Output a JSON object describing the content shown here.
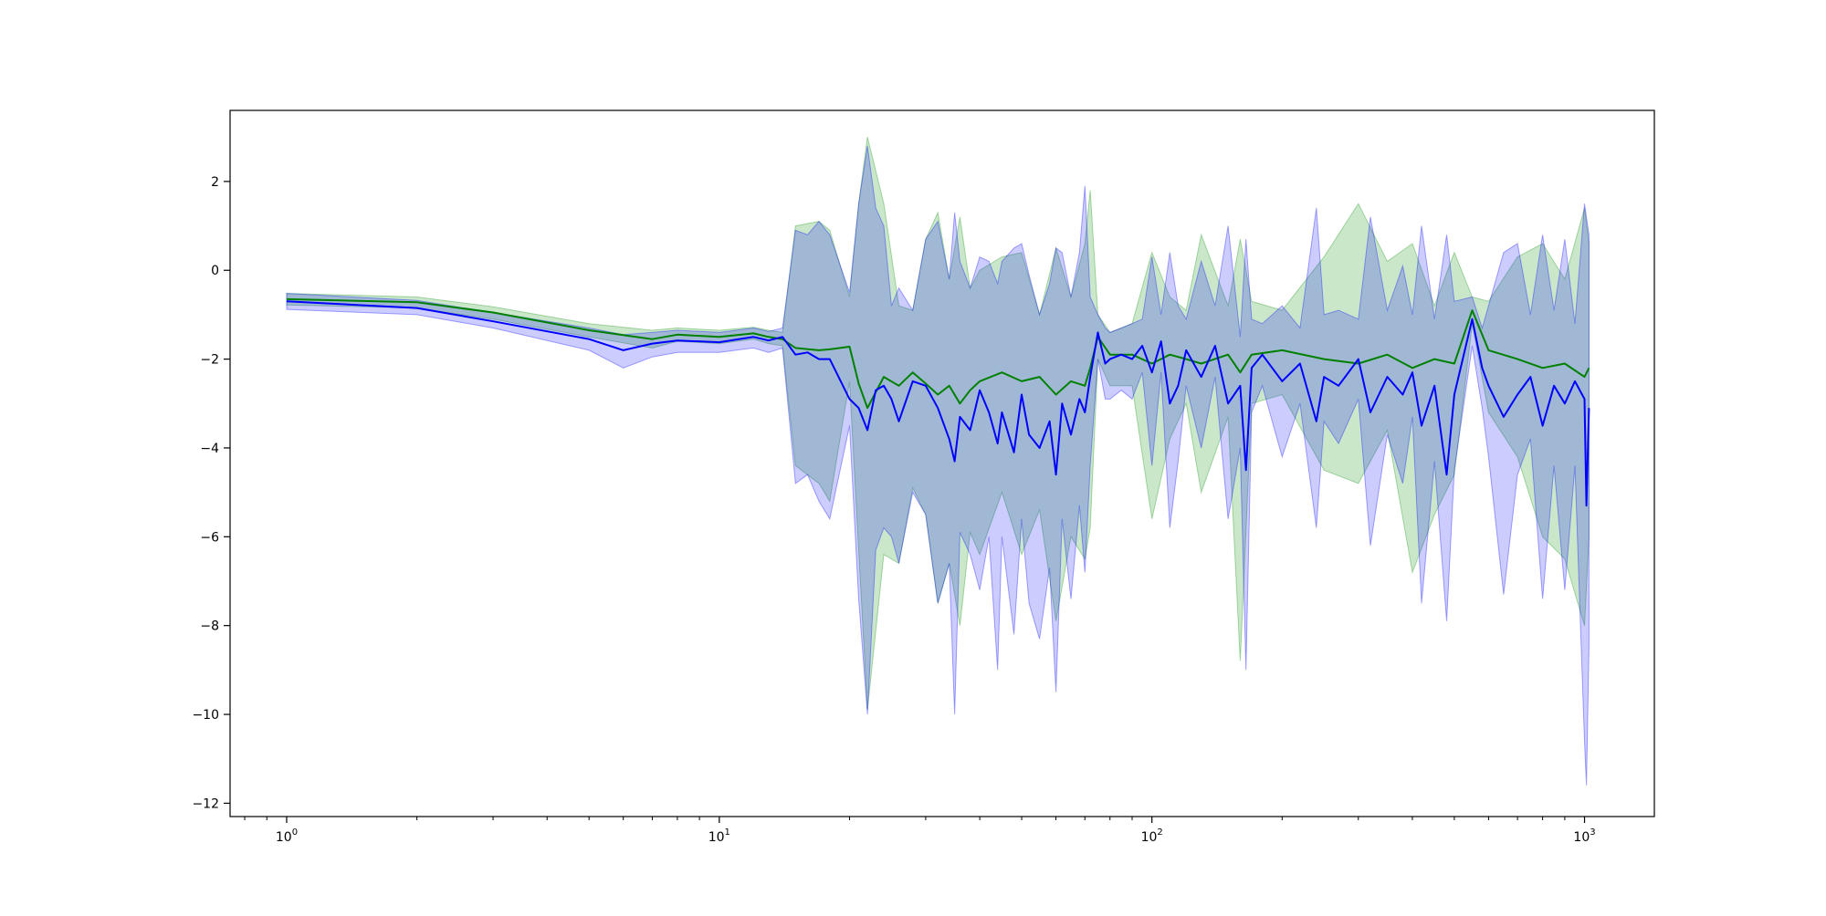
{
  "chart_data": {
    "type": "line",
    "title": "",
    "xlabel": "",
    "ylabel": "",
    "x_scale": "log",
    "xlim": [
      0.74,
      1450
    ],
    "ylim": [
      -12.3,
      3.6
    ],
    "grid": false,
    "legend": "none",
    "x_ticks": [
      1,
      10,
      100,
      1000
    ],
    "x_tick_labels": [
      {
        "base": "10",
        "exp": "0"
      },
      {
        "base": "10",
        "exp": "1"
      },
      {
        "base": "10",
        "exp": "2"
      },
      {
        "base": "10",
        "exp": "3"
      }
    ],
    "y_ticks": [
      2,
      0,
      -2,
      -4,
      -6,
      -8,
      -10,
      -12
    ],
    "y_tick_labels": [
      "2",
      "0",
      "−2",
      "−4",
      "−6",
      "−8",
      "−10",
      "−12"
    ],
    "series": [
      {
        "color": "#008000",
        "band_color": "#2ca02c",
        "band_opacity": 0.25,
        "x": [
          1,
          2,
          3,
          5,
          7,
          8,
          10,
          12,
          13,
          14,
          15,
          17,
          18,
          20,
          21,
          22,
          24,
          26,
          28,
          30,
          32,
          34,
          36,
          38,
          40,
          45,
          50,
          55,
          60,
          65,
          70,
          72,
          75,
          80,
          90,
          100,
          110,
          120,
          130,
          150,
          160,
          170,
          200,
          250,
          300,
          350,
          400,
          450,
          500,
          550,
          600,
          700,
          800,
          900,
          1000,
          1024
        ],
        "y": [
          -0.65,
          -0.72,
          -0.95,
          -1.35,
          -1.55,
          -1.45,
          -1.5,
          -1.42,
          -1.5,
          -1.55,
          -1.75,
          -1.8,
          -1.78,
          -1.72,
          -2.55,
          -3.1,
          -2.4,
          -2.6,
          -2.3,
          -2.55,
          -2.8,
          -2.6,
          -3.0,
          -2.7,
          -2.5,
          -2.3,
          -2.5,
          -2.4,
          -2.8,
          -2.5,
          -2.6,
          -2.2,
          -1.5,
          -1.9,
          -1.9,
          -2.1,
          -1.9,
          -2.0,
          -2.1,
          -1.9,
          -2.3,
          -1.9,
          -1.8,
          -2.0,
          -2.1,
          -1.9,
          -2.2,
          -2.0,
          -2.1,
          -0.9,
          -1.8,
          -2.0,
          -2.2,
          -2.1,
          -2.4,
          -2.2
        ],
        "lower": [
          -0.78,
          -0.85,
          -1.1,
          -1.5,
          -1.75,
          -1.6,
          -1.65,
          -1.55,
          -1.65,
          -1.7,
          -4.4,
          -4.8,
          -5.2,
          -2.5,
          -6.3,
          -9.9,
          -6.4,
          -6.6,
          -4.9,
          -5.5,
          -7.5,
          -6.6,
          -8.0,
          -5.9,
          -6.4,
          -5.0,
          -6.4,
          -5.4,
          -7.9,
          -6.0,
          -6.5,
          -5.8,
          -2.0,
          -2.6,
          -2.6,
          -5.6,
          -3.8,
          -3.0,
          -5.0,
          -3.3,
          -8.8,
          -3.0,
          -2.8,
          -4.5,
          -4.8,
          -3.6,
          -6.8,
          -5.5,
          -4.6,
          -1.2,
          -3.2,
          -4.2,
          -6.0,
          -6.5,
          -8.0,
          -6.0
        ],
        "upper": [
          -0.52,
          -0.6,
          -0.82,
          -1.2,
          -1.35,
          -1.3,
          -1.35,
          -1.28,
          -1.35,
          -1.4,
          1.0,
          1.1,
          0.9,
          -0.6,
          1.5,
          3.0,
          1.5,
          -0.8,
          -0.9,
          0.7,
          1.3,
          -0.2,
          1.2,
          -0.4,
          0.0,
          0.3,
          0.4,
          -1.0,
          0.5,
          -0.6,
          0.6,
          1.8,
          -1.0,
          -1.4,
          -1.2,
          0.4,
          -0.6,
          -0.9,
          0.8,
          -0.8,
          0.7,
          -0.7,
          -0.9,
          0.3,
          1.5,
          0.2,
          0.6,
          -0.8,
          0.4,
          -0.6,
          -0.7,
          0.3,
          0.6,
          -0.2,
          1.4,
          0.6
        ]
      },
      {
        "color": "#0000ff",
        "band_color": "#0000ff",
        "band_opacity": 0.2,
        "x": [
          1,
          2,
          3,
          5,
          6,
          7,
          8,
          10,
          12,
          13,
          14,
          15,
          16,
          17,
          18,
          20,
          21,
          22,
          23,
          24,
          25,
          26,
          28,
          30,
          32,
          34,
          35,
          36,
          38,
          40,
          42,
          44,
          45,
          48,
          50,
          52,
          55,
          58,
          60,
          62,
          65,
          68,
          70,
          72,
          75,
          78,
          80,
          85,
          90,
          95,
          100,
          105,
          110,
          115,
          120,
          130,
          140,
          150,
          160,
          165,
          170,
          180,
          200,
          220,
          240,
          250,
          270,
          300,
          320,
          350,
          380,
          400,
          420,
          450,
          480,
          500,
          550,
          580,
          600,
          650,
          700,
          750,
          800,
          850,
          900,
          950,
          1000,
          1010,
          1024
        ],
        "y": [
          -0.7,
          -0.85,
          -1.15,
          -1.55,
          -1.8,
          -1.65,
          -1.58,
          -1.62,
          -1.5,
          -1.58,
          -1.5,
          -1.9,
          -1.85,
          -2.0,
          -2.0,
          -2.9,
          -3.1,
          -3.6,
          -2.7,
          -2.6,
          -2.9,
          -3.4,
          -2.5,
          -2.6,
          -3.1,
          -3.8,
          -4.3,
          -3.3,
          -3.6,
          -2.7,
          -3.2,
          -3.9,
          -3.2,
          -4.1,
          -2.8,
          -3.7,
          -4.0,
          -3.4,
          -4.6,
          -3.0,
          -3.7,
          -2.9,
          -3.2,
          -2.4,
          -1.4,
          -2.1,
          -2.0,
          -1.9,
          -2.0,
          -1.7,
          -2.3,
          -1.6,
          -3.0,
          -2.6,
          -1.8,
          -2.4,
          -1.7,
          -3.0,
          -2.6,
          -4.5,
          -2.2,
          -1.9,
          -2.5,
          -2.1,
          -3.4,
          -2.4,
          -2.6,
          -2.0,
          -3.2,
          -2.4,
          -2.8,
          -2.3,
          -3.5,
          -2.6,
          -4.6,
          -2.8,
          -1.1,
          -2.2,
          -2.6,
          -3.3,
          -2.8,
          -2.4,
          -3.5,
          -2.6,
          -3.0,
          -2.5,
          -2.9,
          -5.3,
          -3.1
        ],
        "lower": [
          -0.88,
          -1.0,
          -1.3,
          -1.8,
          -2.2,
          -1.95,
          -1.85,
          -1.85,
          -1.75,
          -1.85,
          -1.75,
          -4.8,
          -4.6,
          -5.2,
          -5.6,
          -3.5,
          -7.4,
          -10.0,
          -6.3,
          -5.8,
          -6.0,
          -6.6,
          -5.0,
          -5.5,
          -7.5,
          -6.6,
          -10.0,
          -5.9,
          -6.4,
          -7.2,
          -6.0,
          -9.0,
          -6.0,
          -8.2,
          -5.6,
          -7.5,
          -8.3,
          -6.7,
          -9.5,
          -5.6,
          -7.4,
          -5.3,
          -6.8,
          -4.4,
          -2.0,
          -2.9,
          -2.9,
          -2.7,
          -2.9,
          -2.3,
          -4.4,
          -2.3,
          -5.8,
          -4.3,
          -2.6,
          -4.0,
          -2.4,
          -5.6,
          -4.0,
          -9.0,
          -3.2,
          -2.6,
          -4.2,
          -3.0,
          -5.8,
          -3.4,
          -3.9,
          -2.9,
          -6.2,
          -3.7,
          -4.8,
          -3.3,
          -7.5,
          -4.3,
          -7.9,
          -4.5,
          -1.7,
          -3.1,
          -4.2,
          -7.3,
          -4.6,
          -3.8,
          -7.4,
          -4.4,
          -7.2,
          -4.4,
          -10.6,
          -11.6,
          -8.5
        ],
        "upper": [
          -0.52,
          -0.68,
          -0.95,
          -1.3,
          -1.45,
          -1.4,
          -1.35,
          -1.4,
          -1.3,
          -1.38,
          -1.3,
          0.9,
          0.8,
          1.1,
          0.8,
          -0.5,
          1.5,
          2.8,
          1.4,
          1.0,
          -0.8,
          -0.4,
          -0.9,
          0.7,
          1.1,
          -0.2,
          1.3,
          0.2,
          -0.4,
          0.3,
          0.2,
          -0.3,
          0.2,
          0.5,
          0.6,
          -0.1,
          -1.0,
          -0.3,
          0.5,
          0.4,
          -0.6,
          0.4,
          1.9,
          -0.6,
          -1.0,
          -1.3,
          -1.4,
          -1.3,
          -1.2,
          -1.1,
          0.3,
          -1.0,
          0.4,
          -0.8,
          -1.1,
          0.2,
          -0.8,
          1.0,
          -1.5,
          0.7,
          -1.1,
          -1.2,
          -0.8,
          -1.3,
          1.4,
          -1.0,
          -0.9,
          -1.1,
          1.2,
          -0.9,
          0.1,
          -1.0,
          1.0,
          -1.1,
          0.8,
          -0.7,
          -0.6,
          -1.3,
          -0.8,
          0.4,
          0.6,
          -1.0,
          0.8,
          -0.9,
          0.7,
          -1.2,
          1.5,
          1.2,
          0.8
        ]
      }
    ]
  }
}
